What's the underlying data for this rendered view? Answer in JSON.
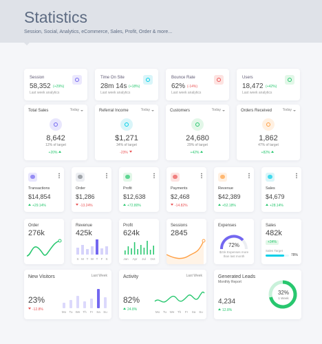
{
  "header": {
    "title": "Statistics",
    "subtitle": "Session, Social, Analytics, eCommerce, Sales, Profit, Order & more..."
  },
  "summary": [
    {
      "label": "Session",
      "value": "58,352",
      "change": "(+29%)",
      "note": "Last week analytics"
    },
    {
      "label": "Time On Site",
      "value": "28m 14s",
      "change": "(+18%)",
      "note": "Last week analytics"
    },
    {
      "label": "Bounce Rate",
      "value": "62%",
      "change": "(-14%)",
      "note": "Last week analytics"
    },
    {
      "label": "Users",
      "value": "18,472",
      "change": "(+42%)",
      "note": "Last week analytics"
    }
  ],
  "targets": [
    {
      "label": "Total Sales",
      "period": "Today",
      "value": "8,642",
      "target": "12% of target",
      "change": "+20%"
    },
    {
      "label": "Referral Income",
      "period": "Today",
      "value": "$1,271",
      "target": "34% of target",
      "change": "-23%"
    },
    {
      "label": "Customers",
      "period": "Today",
      "value": "24,680",
      "target": "29% of target",
      "change": "+42%"
    },
    {
      "label": "Orders Received",
      "period": "Today",
      "value": "1,862",
      "target": "47% of target",
      "change": "+82%"
    }
  ],
  "transactions": [
    {
      "label": "Transactions",
      "value": "$14,854",
      "change": "+29.14%"
    },
    {
      "label": "Order",
      "value": "$1,286",
      "change": "-13.24%"
    },
    {
      "label": "Profit",
      "value": "$12,638",
      "change": "+72.80%"
    },
    {
      "label": "Payments",
      "value": "$2,468",
      "change": "-14.82%"
    },
    {
      "label": "Revenue",
      "value": "$42,389",
      "change": "+52.18%"
    },
    {
      "label": "Sales",
      "value": "$4,679",
      "change": "+28.14%"
    }
  ],
  "charts": {
    "order": {
      "label": "Order",
      "value": "276k"
    },
    "revenue": {
      "label": "Revenue",
      "value": "425k",
      "days": [
        "S",
        "M",
        "T",
        "W",
        "T",
        "F",
        "S"
      ]
    },
    "profit": {
      "label": "Profit",
      "value": "624k",
      "months": [
        "Jan",
        "Apr",
        "Jul",
        "Oct"
      ]
    },
    "sessions": {
      "label": "Sessions",
      "value": "2845"
    },
    "expenses": {
      "label": "Expenses",
      "value": "72%",
      "note": [
        "$21k Expenses more",
        "than last month"
      ]
    },
    "sales": {
      "label": "Sales",
      "value": "482k",
      "change": "+34%",
      "target_label": "Sales Target",
      "target_value": "78%"
    }
  },
  "bottom": {
    "visitors": {
      "title": "New Visitors",
      "period": "Last Week",
      "value": "23%",
      "change": "-12.8%",
      "days": [
        "Mo",
        "Tu",
        "We",
        "Th",
        "Fr",
        "Sa",
        "Su"
      ]
    },
    "activity": {
      "title": "Activity",
      "period": "Last Week",
      "value": "82%",
      "change": "24.8%",
      "days": [
        "Mo",
        "Tu",
        "We",
        "Th",
        "Fr",
        "Sa",
        "Su"
      ]
    },
    "leads": {
      "title": "Generated Leads",
      "subtitle": "Monthly Report",
      "value": "4,234",
      "change": "12.8%",
      "donut_value": "32%",
      "donut_label": "1 Week"
    }
  }
}
